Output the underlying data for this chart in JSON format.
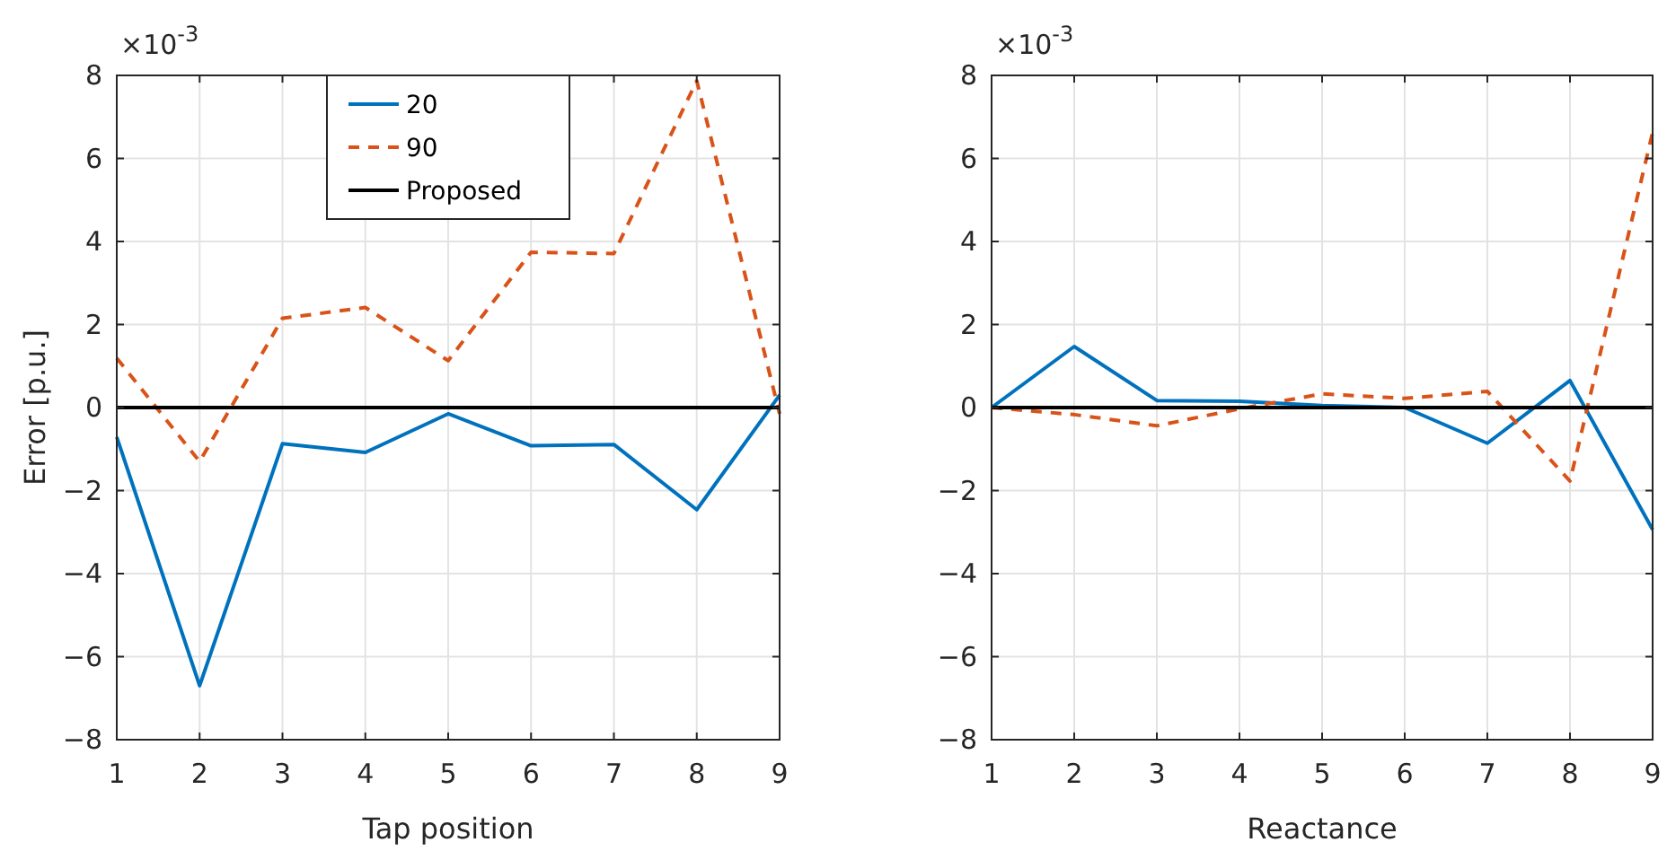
{
  "chart_data": [
    {
      "type": "line",
      "xlabel": "Tap position",
      "ylabel": "Error [p.u.]",
      "annotations": [
        "×10$^{-3}$"
      ],
      "x": [
        1,
        2,
        3,
        4,
        5,
        6,
        7,
        8,
        9
      ],
      "xlim": [
        1,
        9
      ],
      "xticks": [
        1,
        2,
        3,
        4,
        5,
        6,
        7,
        8,
        9
      ],
      "ylim": [
        -8,
        8
      ],
      "yticks": [
        -8,
        -6,
        -4,
        -2,
        0,
        2,
        4,
        6,
        8
      ],
      "grid": true,
      "legend": "top",
      "series": [
        {
          "name": "20",
          "color": "#0072bd",
          "line_style": "solid",
          "values": [
            -0.71,
            -6.7,
            -0.87,
            -1.08,
            -0.15,
            -0.92,
            -0.89,
            -2.46,
            0.3
          ]
        },
        {
          "name": "90",
          "color": "#d95319",
          "line_style": "dashed",
          "values": [
            1.19,
            -1.3,
            2.15,
            2.41,
            1.13,
            3.74,
            3.71,
            7.87,
            -0.15
          ]
        },
        {
          "name": "Proposed",
          "color": "#000000",
          "line_style": "solid",
          "values": [
            0,
            0,
            0,
            0,
            0,
            0,
            0,
            0,
            0
          ]
        }
      ]
    },
    {
      "type": "line",
      "xlabel": "Reactance",
      "annotations": [
        "×10$^{-3}$"
      ],
      "x": [
        1,
        2,
        3,
        4,
        5,
        6,
        7,
        8,
        9
      ],
      "xlim": [
        1,
        9
      ],
      "xticks": [
        1,
        2,
        3,
        4,
        5,
        6,
        7,
        8,
        9
      ],
      "ylim": [
        -8,
        8
      ],
      "yticks": [
        -8,
        -6,
        -4,
        -2,
        0,
        2,
        4,
        6,
        8
      ],
      "grid": true,
      "series": [
        {
          "color": "#0072bd",
          "line_style": "solid",
          "values": [
            0,
            1.47,
            0.17,
            0.15,
            0.05,
            0,
            -0.86,
            0.65,
            -2.94
          ]
        },
        {
          "color": "#d95319",
          "line_style": "dashed",
          "values": [
            0,
            -0.17,
            -0.44,
            -0.03,
            0.33,
            0.22,
            0.39,
            -1.77,
            6.63
          ]
        },
        {
          "color": "#000000",
          "line_style": "solid",
          "values": [
            0,
            0,
            0,
            0,
            0,
            0,
            0,
            0,
            0
          ]
        }
      ]
    }
  ]
}
